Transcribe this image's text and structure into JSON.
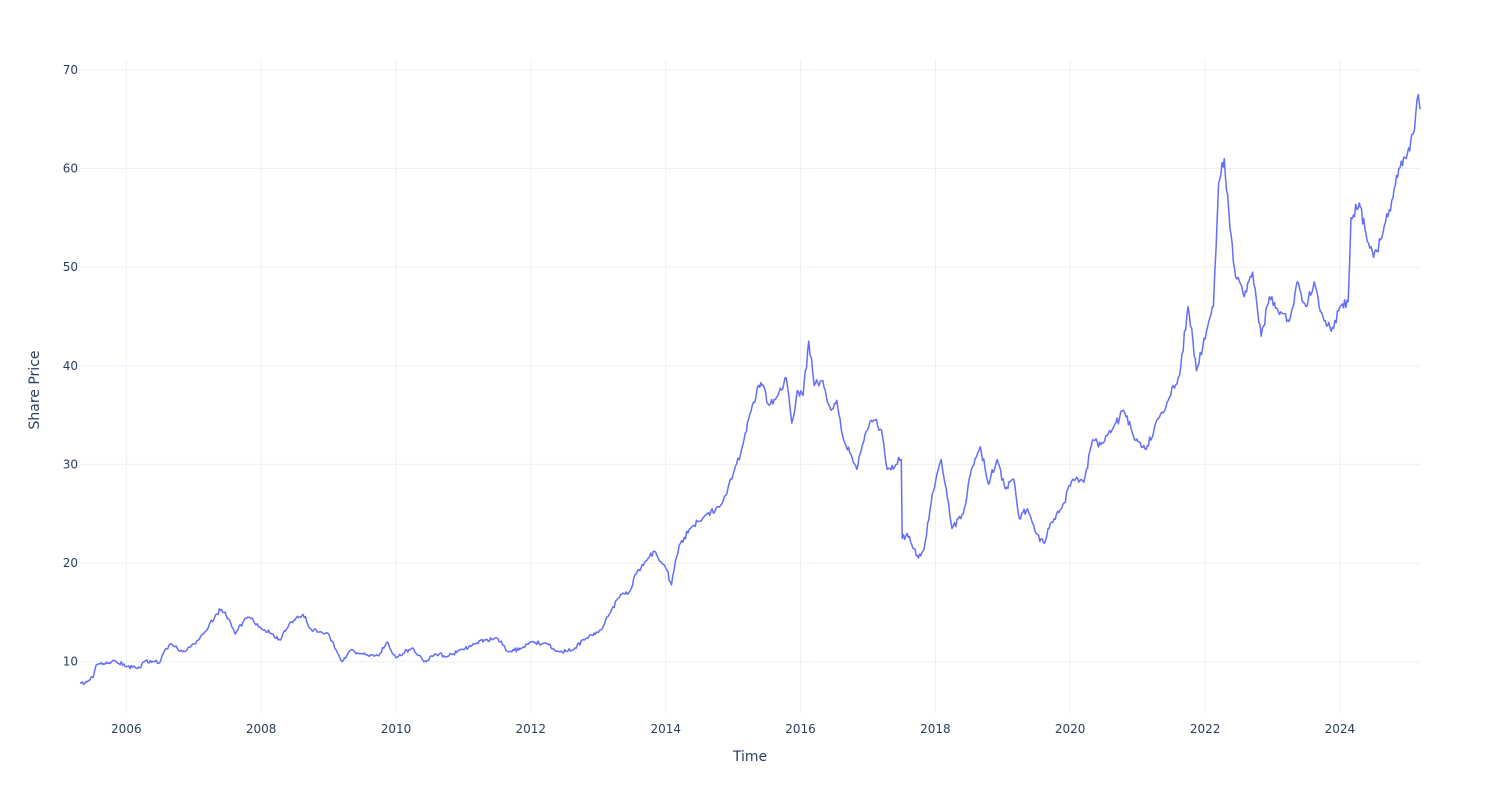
{
  "chart_data": {
    "type": "line",
    "title": "",
    "xlabel": "Time",
    "ylabel": "Share Price",
    "grid": true,
    "legend": "none",
    "xlim": [
      "2005-04-25",
      "2025-03-10"
    ],
    "ylim": [
      4.8,
      71.0
    ],
    "x_ticks": [
      "2006",
      "2008",
      "2010",
      "2012",
      "2014",
      "2016",
      "2018",
      "2020",
      "2022",
      "2024"
    ],
    "y_ticks": [
      10,
      20,
      30,
      40,
      50,
      60,
      70
    ],
    "series": [
      {
        "color": "#636efa",
        "points": [
          [
            "2005-04-25",
            7.9
          ],
          [
            "2005-05-15",
            7.7
          ],
          [
            "2005-06-10",
            8.1
          ],
          [
            "2005-07-05",
            8.4
          ],
          [
            "2005-07-20",
            9.6
          ],
          [
            "2005-09-01",
            9.8
          ],
          [
            "2005-11-01",
            10.1
          ],
          [
            "2006-01-01",
            9.5
          ],
          [
            "2006-03-01",
            9.3
          ],
          [
            "2006-04-15",
            10.1
          ],
          [
            "2006-06-01",
            10.0
          ],
          [
            "2006-07-01",
            9.9
          ],
          [
            "2006-08-01",
            11.3
          ],
          [
            "2006-09-01",
            11.8
          ],
          [
            "2006-11-01",
            11.0
          ],
          [
            "2006-12-15",
            11.5
          ],
          [
            "2007-02-01",
            12.3
          ],
          [
            "2007-03-01",
            13.0
          ],
          [
            "2007-04-01",
            14.0
          ],
          [
            "2007-05-01",
            14.8
          ],
          [
            "2007-06-01",
            15.3
          ],
          [
            "2007-07-15",
            14.2
          ],
          [
            "2007-08-15",
            12.8
          ],
          [
            "2007-10-01",
            14.2
          ],
          [
            "2007-11-01",
            14.5
          ],
          [
            "2008-01-01",
            13.4
          ],
          [
            "2008-03-01",
            12.8
          ],
          [
            "2008-04-15",
            12.2
          ],
          [
            "2008-06-01",
            13.8
          ],
          [
            "2008-07-15",
            14.6
          ],
          [
            "2008-08-15",
            14.8
          ],
          [
            "2008-10-01",
            13.2
          ],
          [
            "2008-11-01",
            13.0
          ],
          [
            "2009-01-01",
            12.8
          ],
          [
            "2009-02-15",
            11.0
          ],
          [
            "2009-03-15",
            10.0
          ],
          [
            "2009-05-01",
            11.2
          ],
          [
            "2009-07-01",
            10.8
          ],
          [
            "2009-10-01",
            10.6
          ],
          [
            "2009-11-15",
            12.0
          ],
          [
            "2010-01-01",
            10.4
          ],
          [
            "2010-04-01",
            11.4
          ],
          [
            "2010-06-01",
            10.0
          ],
          [
            "2010-08-01",
            10.8
          ],
          [
            "2010-10-01",
            10.5
          ],
          [
            "2010-12-15",
            11.2
          ],
          [
            "2011-03-01",
            11.8
          ],
          [
            "2011-05-01",
            12.2
          ],
          [
            "2011-07-01",
            12.4
          ],
          [
            "2011-09-01",
            11.0
          ],
          [
            "2011-11-15",
            11.4
          ],
          [
            "2012-01-01",
            12.0
          ],
          [
            "2012-04-01",
            11.8
          ],
          [
            "2012-06-01",
            11.0
          ],
          [
            "2012-08-15",
            11.2
          ],
          [
            "2012-11-01",
            12.4
          ],
          [
            "2013-01-15",
            13.2
          ],
          [
            "2013-03-01",
            14.8
          ],
          [
            "2013-05-01",
            16.8
          ],
          [
            "2013-06-15",
            17.0
          ],
          [
            "2013-08-01",
            19.2
          ],
          [
            "2013-09-15",
            20.2
          ],
          [
            "2013-11-01",
            21.2
          ],
          [
            "2014-01-01",
            19.5
          ],
          [
            "2014-02-01",
            17.8
          ],
          [
            "2014-03-15",
            21.8
          ],
          [
            "2014-05-15",
            23.5
          ],
          [
            "2014-08-01",
            24.8
          ],
          [
            "2014-11-01",
            26.0
          ],
          [
            "2015-01-01",
            29.0
          ],
          [
            "2015-03-01",
            32.5
          ],
          [
            "2015-04-15",
            36.0
          ],
          [
            "2015-06-01",
            38.3
          ],
          [
            "2015-07-15",
            36.0
          ],
          [
            "2015-09-01",
            37.0
          ],
          [
            "2015-10-15",
            38.8
          ],
          [
            "2015-11-15",
            34.2
          ],
          [
            "2015-12-15",
            37.5
          ],
          [
            "2016-01-15",
            37.0
          ],
          [
            "2016-02-15",
            42.5
          ],
          [
            "2016-03-15",
            38.0
          ],
          [
            "2016-05-01",
            38.5
          ],
          [
            "2016-06-15",
            35.5
          ],
          [
            "2016-07-15",
            36.5
          ],
          [
            "2016-08-15",
            33.0
          ],
          [
            "2016-10-01",
            31.0
          ],
          [
            "2016-11-01",
            29.5
          ],
          [
            "2016-12-15",
            33.0
          ],
          [
            "2017-02-01",
            34.5
          ],
          [
            "2017-03-15",
            33.5
          ],
          [
            "2017-04-15",
            29.5
          ],
          [
            "2017-06-01",
            30.0
          ],
          [
            "2017-06-30",
            30.5
          ],
          [
            "2017-07-05",
            22.5
          ],
          [
            "2017-08-01",
            23.0
          ],
          [
            "2017-09-01",
            21.5
          ],
          [
            "2017-10-01",
            20.5
          ],
          [
            "2017-11-01",
            21.5
          ],
          [
            "2017-12-15",
            27.0
          ],
          [
            "2018-02-01",
            30.5
          ],
          [
            "2018-03-01",
            27.5
          ],
          [
            "2018-04-01",
            23.5
          ],
          [
            "2018-06-01",
            25.0
          ],
          [
            "2018-07-15",
            29.5
          ],
          [
            "2018-09-01",
            31.8
          ],
          [
            "2018-10-15",
            28.0
          ],
          [
            "2018-12-01",
            30.5
          ],
          [
            "2019-01-15",
            27.5
          ],
          [
            "2019-03-01",
            28.5
          ],
          [
            "2019-04-01",
            24.5
          ],
          [
            "2019-05-15",
            25.5
          ],
          [
            "2019-07-01",
            23.0
          ],
          [
            "2019-08-15",
            22.0
          ],
          [
            "2019-09-15",
            24.0
          ],
          [
            "2019-11-15",
            25.5
          ],
          [
            "2020-01-15",
            28.5
          ],
          [
            "2020-03-15",
            28.2
          ],
          [
            "2020-05-01",
            32.5
          ],
          [
            "2020-06-15",
            32.0
          ],
          [
            "2020-08-15",
            33.5
          ],
          [
            "2020-10-15",
            35.5
          ],
          [
            "2020-12-15",
            32.5
          ],
          [
            "2021-02-15",
            31.5
          ],
          [
            "2021-04-15",
            34.5
          ],
          [
            "2021-06-15",
            36.5
          ],
          [
            "2021-08-15",
            39.0
          ],
          [
            "2021-10-01",
            46.0
          ],
          [
            "2021-11-15",
            39.5
          ],
          [
            "2022-01-15",
            44.0
          ],
          [
            "2022-02-15",
            46.0
          ],
          [
            "2022-03-15",
            58.5
          ],
          [
            "2022-04-15",
            61.0
          ],
          [
            "2022-05-15",
            54.0
          ],
          [
            "2022-06-15",
            49.0
          ],
          [
            "2022-08-01",
            47.0
          ],
          [
            "2022-09-15",
            49.5
          ],
          [
            "2022-11-01",
            43.0
          ],
          [
            "2022-12-15",
            47.0
          ],
          [
            "2023-02-01",
            45.5
          ],
          [
            "2023-04-01",
            44.5
          ],
          [
            "2023-05-15",
            48.5
          ],
          [
            "2023-07-01",
            46.0
          ],
          [
            "2023-08-15",
            48.5
          ],
          [
            "2023-10-01",
            45.0
          ],
          [
            "2023-11-15",
            43.5
          ],
          [
            "2024-01-01",
            46.0
          ],
          [
            "2024-02-15",
            46.5
          ],
          [
            "2024-03-01",
            55.0
          ],
          [
            "2024-04-15",
            56.5
          ],
          [
            "2024-05-15",
            54.0
          ],
          [
            "2024-07-01",
            51.0
          ],
          [
            "2024-08-15",
            53.0
          ],
          [
            "2024-10-15",
            57.0
          ],
          [
            "2024-11-15",
            60.0
          ],
          [
            "2025-01-01",
            61.5
          ],
          [
            "2025-02-01",
            63.5
          ],
          [
            "2025-03-01",
            67.5
          ],
          [
            "2025-03-10",
            66.0
          ]
        ]
      }
    ]
  }
}
